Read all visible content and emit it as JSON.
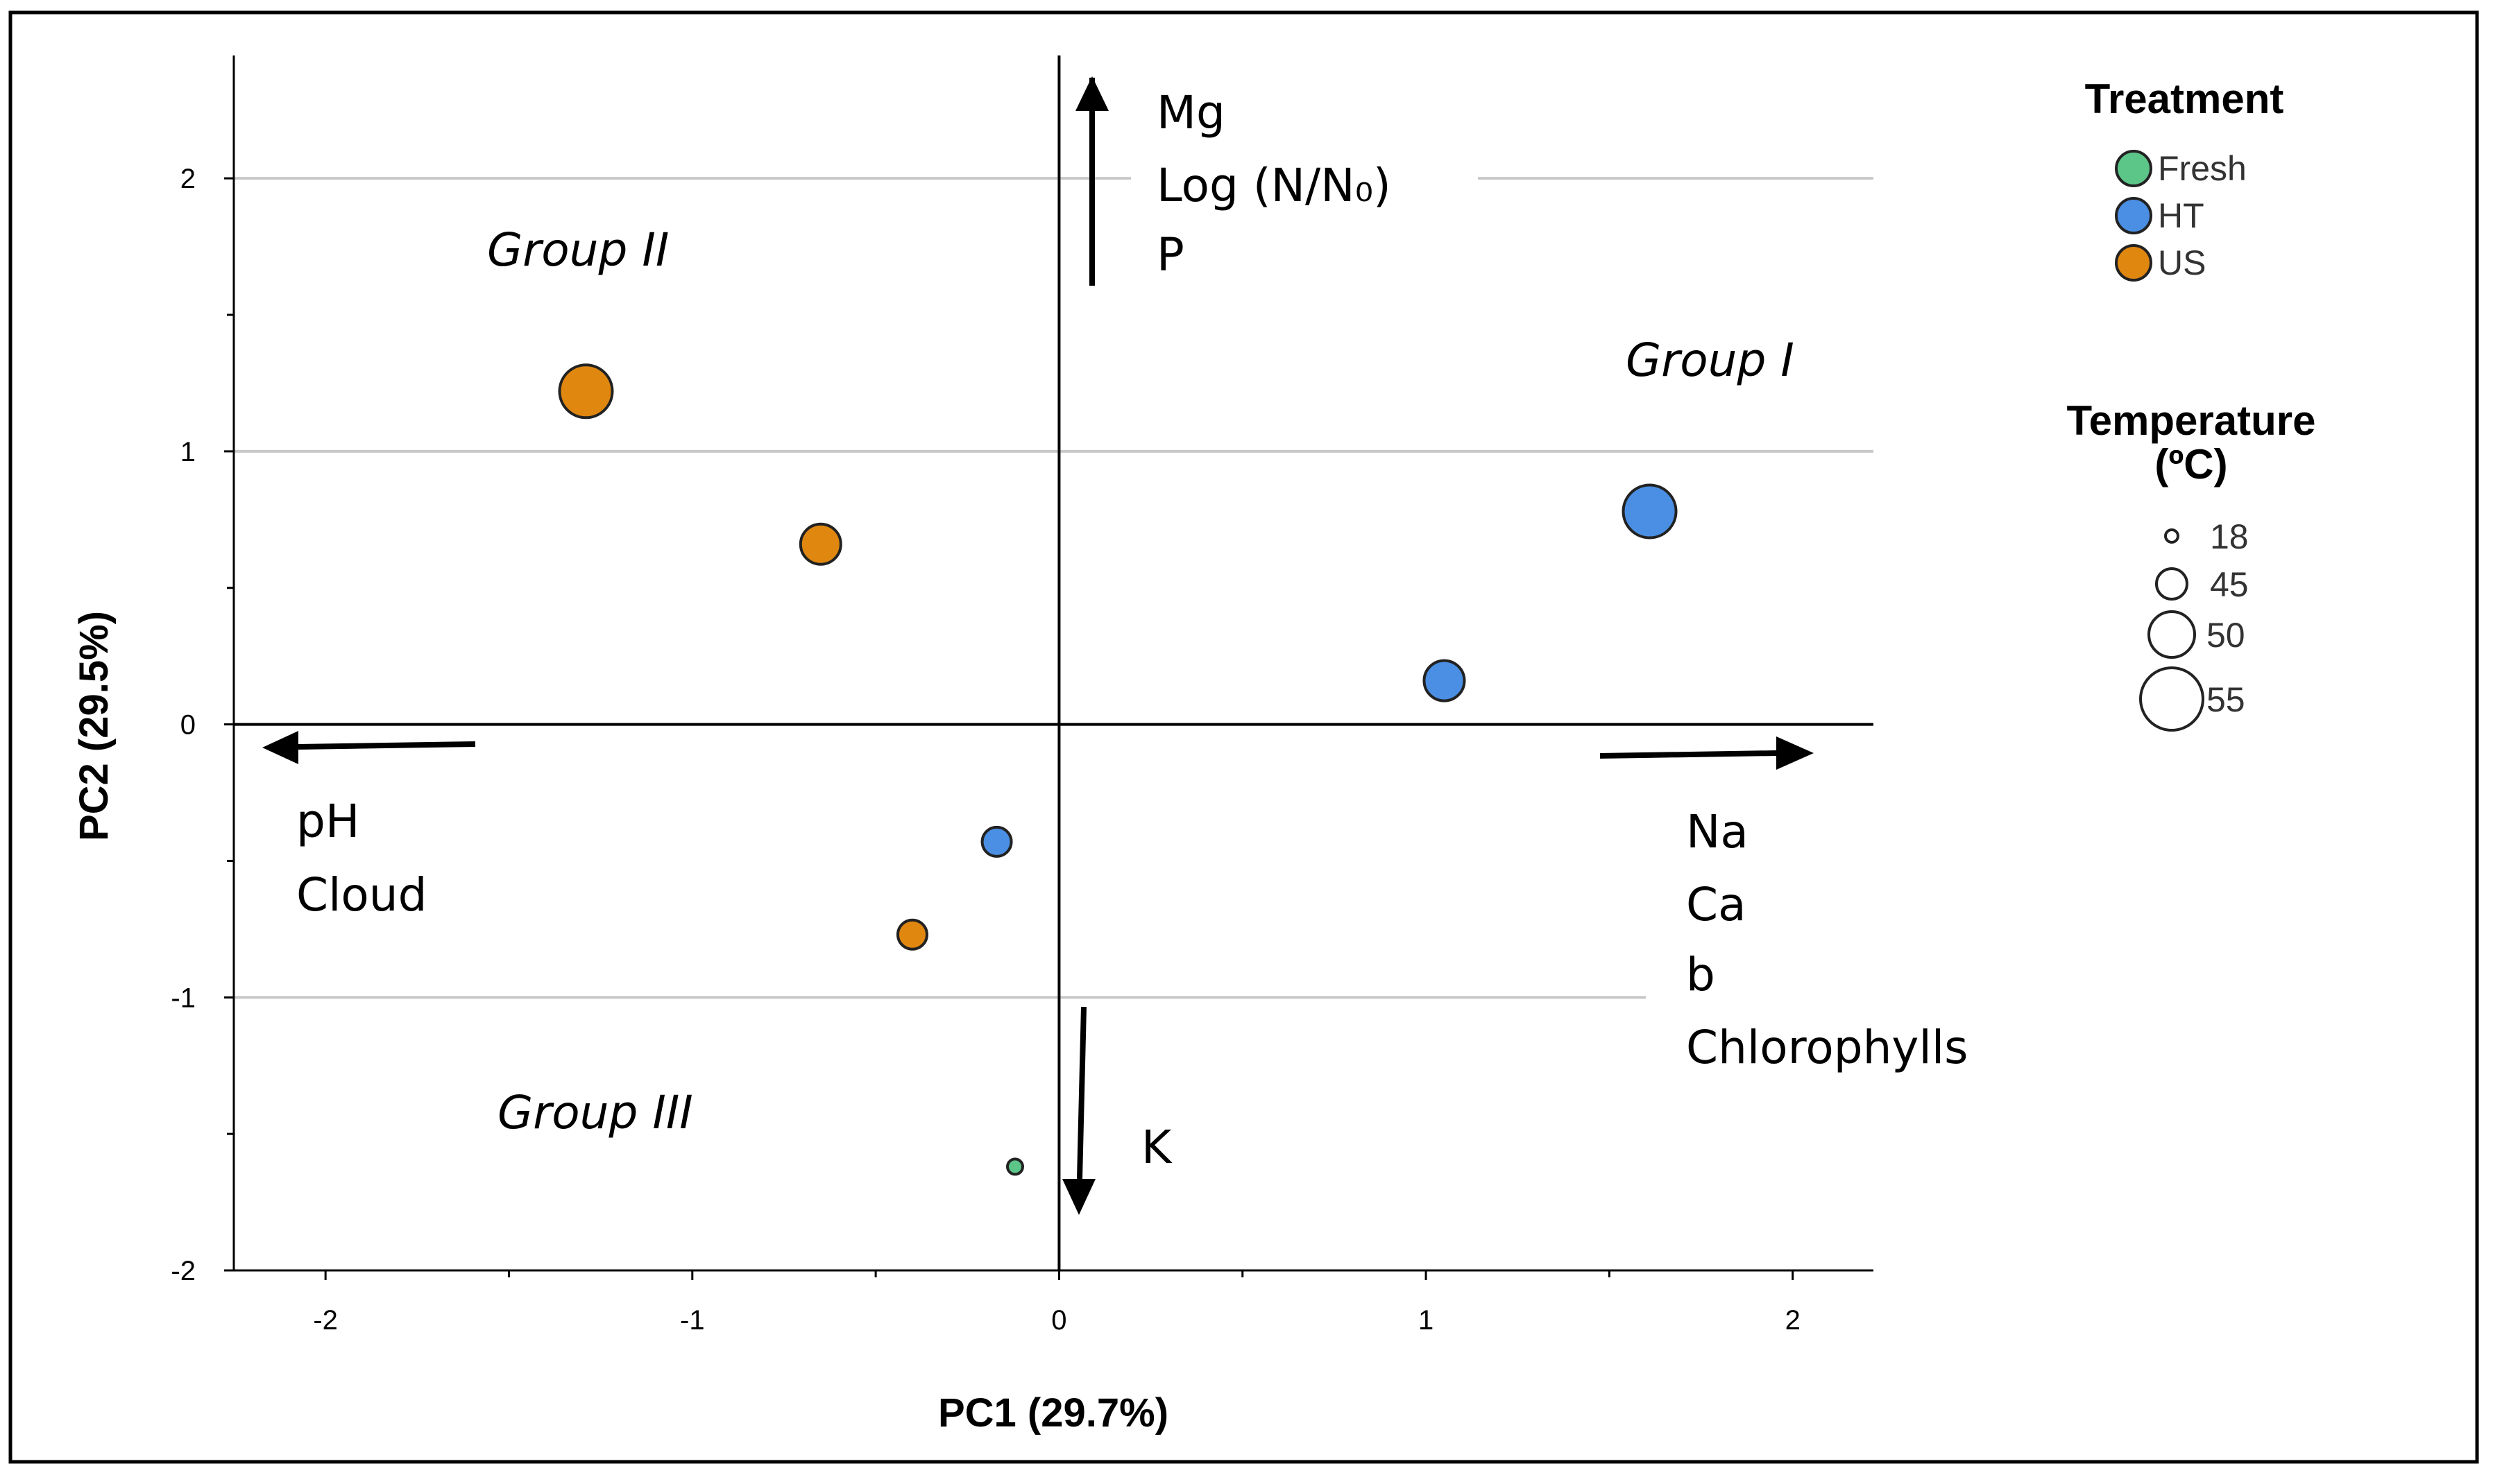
{
  "chart_data": {
    "type": "scatter",
    "xlabel": "PC1 (29.7%)",
    "ylabel": "PC2 (29.5%)",
    "xlim": [
      -2.25,
      2.22
    ],
    "ylim": [
      -2.0,
      2.45
    ],
    "x_ticks": [
      -2,
      -1,
      0,
      1,
      2
    ],
    "x_tick_labels": [
      "-2",
      "-1",
      "0",
      "1",
      "2"
    ],
    "y_ticks": [
      -2,
      -1,
      0,
      1,
      2
    ],
    "y_tick_labels": [
      "-2",
      "-1",
      "0",
      "1",
      "2"
    ],
    "grid": "horizontal",
    "points": [
      {
        "treatment": "US",
        "temperature": 55,
        "x": -1.29,
        "y": 1.22
      },
      {
        "treatment": "US",
        "temperature": 50,
        "x": -0.65,
        "y": 0.66
      },
      {
        "treatment": "US",
        "temperature": 45,
        "x": -0.4,
        "y": -0.77
      },
      {
        "treatment": "HT",
        "temperature": 55,
        "x": 1.61,
        "y": 0.78
      },
      {
        "treatment": "HT",
        "temperature": 50,
        "x": 1.05,
        "y": 0.16
      },
      {
        "treatment": "HT",
        "temperature": 45,
        "x": -0.17,
        "y": -0.43
      },
      {
        "treatment": "Fresh",
        "temperature": 18,
        "x": -0.12,
        "y": -1.62
      }
    ],
    "loading_arrows": [
      {
        "direction": "up",
        "labels": [
          "Mg",
          "Log (N/N₀)",
          "P"
        ]
      },
      {
        "direction": "down",
        "labels": [
          "K"
        ]
      },
      {
        "direction": "left",
        "labels": [
          "pH",
          "Cloud"
        ]
      },
      {
        "direction": "right",
        "labels": [
          "Na",
          "Ca",
          "b",
          "Chlorophylls"
        ]
      }
    ],
    "group_labels": [
      "Group I",
      "Group II",
      "Group III"
    ],
    "legend": {
      "placement": "right",
      "treatment_title": "Treatment",
      "treatments": [
        {
          "name": "Fresh",
          "color": "#5cc689"
        },
        {
          "name": "HT",
          "color": "#4a8fe3"
        },
        {
          "name": "US",
          "color": "#e0870f"
        }
      ],
      "temperature_title_line1": "Temperature",
      "temperature_title_line2": "(ºC)",
      "temperatures": [
        "18",
        "45",
        "50",
        "55"
      ]
    }
  }
}
